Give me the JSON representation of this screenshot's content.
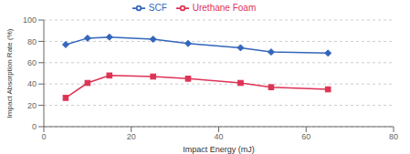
{
  "chart_data": {
    "type": "line",
    "xlabel": "Impact Energy (mJ)",
    "ylabel": "Impact Absorption Rate (%)",
    "x": [
      5,
      10,
      15,
      25,
      33,
      45,
      52,
      65
    ],
    "series": [
      {
        "name": "SCF",
        "color": "#3366bb",
        "marker": "diamond",
        "values": [
          77,
          83,
          84,
          82,
          78,
          74,
          70,
          69
        ]
      },
      {
        "name": "Urethane Foam",
        "color": "#dd3355",
        "marker": "square",
        "values": [
          27,
          41,
          48,
          47,
          45,
          41,
          37,
          35
        ]
      }
    ],
    "xlim": [
      0,
      80
    ],
    "ylim": [
      0,
      100
    ],
    "xticks": [
      0,
      20,
      40,
      60,
      80
    ],
    "yticks": [
      0,
      20,
      40,
      60,
      80,
      100
    ],
    "grid": "y",
    "legend": "top"
  }
}
